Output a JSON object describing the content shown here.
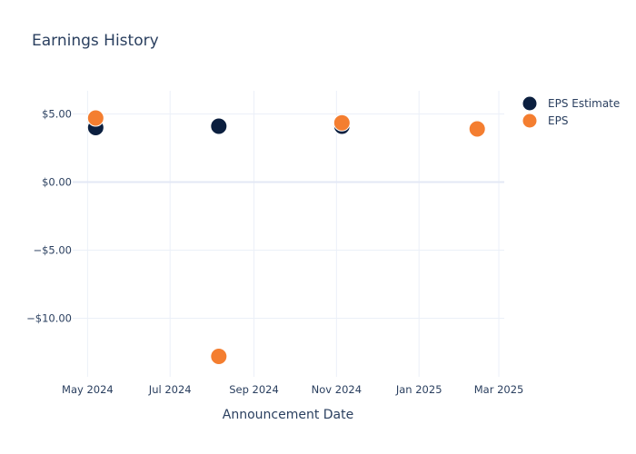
{
  "chart_data": {
    "type": "scatter",
    "title": "Earnings History",
    "xlabel": "Announcement Date",
    "ylabel": "",
    "x_tick_labels": [
      "May 2024",
      "Jul 2024",
      "Sep 2024",
      "Nov 2024",
      "Jan 2025",
      "Mar 2025"
    ],
    "x_tick_dates": [
      "2024-05-01",
      "2024-07-01",
      "2024-09-01",
      "2024-11-01",
      "2025-01-01",
      "2025-03-01"
    ],
    "xlim": [
      "2024-04-20",
      "2025-03-05"
    ],
    "y_tick_labels": [
      "$5.00",
      "$0.00",
      "−$5.00",
      "−$10.00"
    ],
    "y_ticks": [
      5,
      0,
      -5,
      -10
    ],
    "ylim": [
      -14.3,
      6.7
    ],
    "grid": true,
    "legend_position": "top-right",
    "series": [
      {
        "name": "EPS Estimate",
        "color": "#0b1f3f",
        "points": [
          {
            "x": "2024-05-07",
            "y": 4.0
          },
          {
            "x": "2024-08-06",
            "y": 4.1
          },
          {
            "x": "2024-11-05",
            "y": 4.1
          },
          {
            "x": "2025-02-13",
            "y": 3.95
          }
        ]
      },
      {
        "name": "EPS",
        "color": "#f47e30",
        "points": [
          {
            "x": "2024-05-07",
            "y": 4.7
          },
          {
            "x": "2024-08-06",
            "y": -12.8
          },
          {
            "x": "2024-11-05",
            "y": 4.35
          },
          {
            "x": "2025-02-13",
            "y": 3.9
          }
        ]
      }
    ]
  }
}
